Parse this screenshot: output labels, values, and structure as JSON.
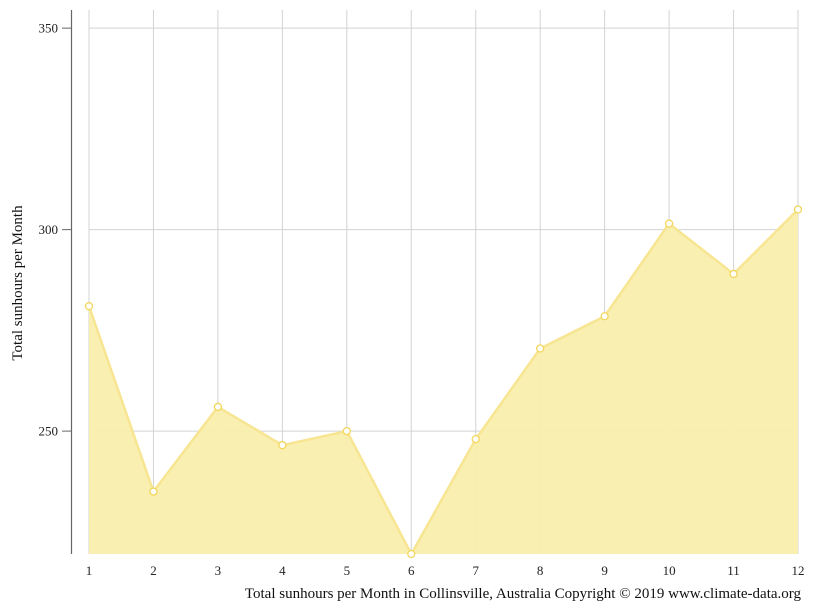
{
  "chart_data": {
    "type": "area",
    "x": [
      1,
      2,
      3,
      4,
      5,
      6,
      7,
      8,
      9,
      10,
      11,
      12
    ],
    "categories": [
      "1",
      "2",
      "3",
      "4",
      "5",
      "6",
      "7",
      "8",
      "9",
      "10",
      "11",
      "12"
    ],
    "series": [
      {
        "values": [
          281,
          235,
          256,
          246.5,
          250,
          219.5,
          248,
          270.5,
          278.5,
          301.5,
          289,
          305
        ]
      }
    ],
    "ylabel": "Total sunhours per Month",
    "xlabel": "",
    "caption": "Total sunhours per Month in Collinsville, Australia Copyright © 2019 www.climate-data.org",
    "ylim": [
      219.5,
      354.5
    ],
    "yticks": [
      250,
      300,
      350
    ],
    "ytick_labels": [
      "250",
      "300",
      "350"
    ],
    "grid": true,
    "colors": {
      "fill": "#f9eeac",
      "line": "#f7e592",
      "grid": "#d3d3d3",
      "axis": "#666666"
    }
  }
}
